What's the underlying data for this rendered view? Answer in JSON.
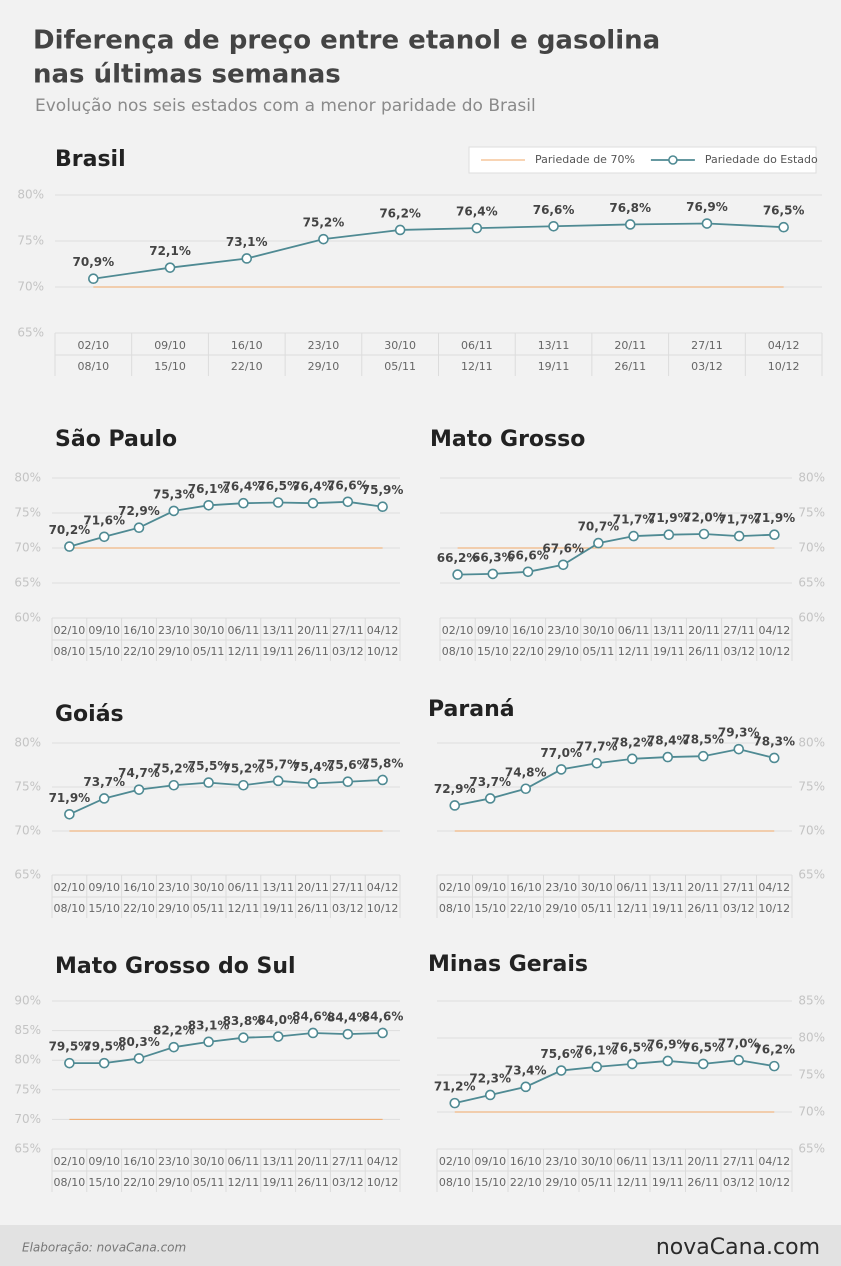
{
  "title": [
    "Diferença de preço entre etanol e gasolina",
    "nas últimas semanas"
  ],
  "subtitle": "Evolução nos seis estados com a menor paridade do Brasil",
  "footer": {
    "credit": "Elaboração: novaCana.com",
    "logo": "novaCana.com"
  },
  "chart_data": [
    {
      "type": "line",
      "title": "Brasil",
      "y_axis_side": "left",
      "grid": true,
      "legend": "top-right",
      "categories": [
        [
          "02/10",
          "08/10"
        ],
        [
          "09/10",
          "15/10"
        ],
        [
          "16/10",
          "22/10"
        ],
        [
          "23/10",
          "29/10"
        ],
        [
          "30/10",
          "05/11"
        ],
        [
          "06/11",
          "12/11"
        ],
        [
          "13/11",
          "19/11"
        ],
        [
          "20/11",
          "26/11"
        ],
        [
          "27/11",
          "03/12"
        ],
        [
          "04/12",
          "10/12"
        ]
      ],
      "ylim": [
        65,
        80
      ],
      "yticks": [
        {
          "value": 65,
          "label": "65%"
        },
        {
          "value": 70,
          "label": "70%"
        },
        {
          "value": 75,
          "label": "75%"
        },
        {
          "value": 80,
          "label": "80%"
        }
      ],
      "series": [
        {
          "name": "Pariedade de 70%",
          "color": "#f0a868",
          "values": [
            70,
            70,
            70,
            70,
            70,
            70,
            70,
            70,
            70,
            70
          ]
        },
        {
          "name": "Pariedade do Estado",
          "color": "#4f8a93",
          "values": [
            70.9,
            72.1,
            73.1,
            75.2,
            76.2,
            76.4,
            76.6,
            76.8,
            76.9,
            76.5
          ],
          "value_labels": [
            "70,9%",
            "72,1%",
            "73,1%",
            "75,2%",
            "76,2%",
            "76,4%",
            "76,6%",
            "76,8%",
            "76,9%",
            "76,5%"
          ]
        }
      ]
    },
    {
      "type": "line",
      "title": "São Paulo",
      "y_axis_side": "left",
      "grid": true,
      "categories": [
        [
          "02/10",
          "08/10"
        ],
        [
          "09/10",
          "15/10"
        ],
        [
          "16/10",
          "22/10"
        ],
        [
          "23/10",
          "29/10"
        ],
        [
          "30/10",
          "05/11"
        ],
        [
          "06/11",
          "12/11"
        ],
        [
          "13/11",
          "19/11"
        ],
        [
          "20/11",
          "26/11"
        ],
        [
          "27/11",
          "03/12"
        ],
        [
          "04/12",
          "10/12"
        ]
      ],
      "ylim": [
        60,
        80
      ],
      "yticks": [
        {
          "value": 60,
          "label": "60%"
        },
        {
          "value": 65,
          "label": "65%"
        },
        {
          "value": 70,
          "label": "70%"
        },
        {
          "value": 75,
          "label": "75%"
        },
        {
          "value": 80,
          "label": "80%"
        }
      ],
      "series": [
        {
          "color": "#f0a868",
          "values": [
            70,
            70,
            70,
            70,
            70,
            70,
            70,
            70,
            70,
            70
          ]
        },
        {
          "color": "#4f8a93",
          "values": [
            70.2,
            71.6,
            72.9,
            75.3,
            76.1,
            76.4,
            76.5,
            76.4,
            76.6,
            75.9
          ],
          "value_labels": [
            "70,2%",
            "71,6%",
            "72,9%",
            "75,3%",
            "76,1%",
            "76,4%",
            "76,5%",
            "76,4%",
            "76,6%",
            "75,9%"
          ]
        }
      ]
    },
    {
      "type": "line",
      "title": "Mato Grosso",
      "y_axis_side": "right",
      "grid": true,
      "categories": [
        [
          "02/10",
          "08/10"
        ],
        [
          "09/10",
          "15/10"
        ],
        [
          "16/10",
          "22/10"
        ],
        [
          "23/10",
          "29/10"
        ],
        [
          "30/10",
          "05/11"
        ],
        [
          "06/11",
          "12/11"
        ],
        [
          "13/11",
          "19/11"
        ],
        [
          "20/11",
          "26/11"
        ],
        [
          "27/11",
          "03/12"
        ],
        [
          "04/12",
          "10/12"
        ]
      ],
      "ylim": [
        60,
        80
      ],
      "yticks": [
        {
          "value": 60,
          "label": "60%"
        },
        {
          "value": 65,
          "label": "65%"
        },
        {
          "value": 70,
          "label": "70%"
        },
        {
          "value": 75,
          "label": "75%"
        },
        {
          "value": 80,
          "label": "80%"
        }
      ],
      "series": [
        {
          "color": "#f0a868",
          "values": [
            70,
            70,
            70,
            70,
            70,
            70,
            70,
            70,
            70,
            70
          ]
        },
        {
          "color": "#4f8a93",
          "values": [
            66.2,
            66.3,
            66.6,
            67.6,
            70.7,
            71.7,
            71.9,
            72.0,
            71.7,
            71.9
          ],
          "value_labels": [
            "66,2%",
            "66,3%",
            "66,6%",
            "67,6%",
            "70,7%",
            "71,7%",
            "71,9%",
            "72,0%",
            "71,7%",
            "71,9%"
          ]
        }
      ]
    },
    {
      "type": "line",
      "title": "Goiás",
      "y_axis_side": "left",
      "grid": true,
      "categories": [
        [
          "02/10",
          "08/10"
        ],
        [
          "09/10",
          "15/10"
        ],
        [
          "16/10",
          "22/10"
        ],
        [
          "23/10",
          "29/10"
        ],
        [
          "30/10",
          "05/11"
        ],
        [
          "06/11",
          "12/11"
        ],
        [
          "13/11",
          "19/11"
        ],
        [
          "20/11",
          "26/11"
        ],
        [
          "27/11",
          "03/12"
        ],
        [
          "04/12",
          "10/12"
        ]
      ],
      "ylim": [
        65,
        80
      ],
      "yticks": [
        {
          "value": 65,
          "label": "65%"
        },
        {
          "value": 70,
          "label": "70%"
        },
        {
          "value": 75,
          "label": "75%"
        },
        {
          "value": 80,
          "label": "80%"
        }
      ],
      "series": [
        {
          "color": "#f0a868",
          "values": [
            70,
            70,
            70,
            70,
            70,
            70,
            70,
            70,
            70,
            70
          ]
        },
        {
          "color": "#4f8a93",
          "values": [
            71.9,
            73.7,
            74.7,
            75.2,
            75.5,
            75.2,
            75.7,
            75.4,
            75.6,
            75.8
          ],
          "value_labels": [
            "71,9%",
            "73,7%",
            "74,7%",
            "75,2%",
            "75,5%",
            "75,2%",
            "75,7%",
            "75,4%",
            "75,6%",
            "75,8%"
          ]
        }
      ]
    },
    {
      "type": "line",
      "title": "Paraná",
      "y_axis_side": "right",
      "grid": true,
      "categories": [
        [
          "02/10",
          "08/10"
        ],
        [
          "09/10",
          "15/10"
        ],
        [
          "16/10",
          "22/10"
        ],
        [
          "23/10",
          "29/10"
        ],
        [
          "30/10",
          "05/11"
        ],
        [
          "06/11",
          "12/11"
        ],
        [
          "13/11",
          "19/11"
        ],
        [
          "20/11",
          "26/11"
        ],
        [
          "27/11",
          "03/12"
        ],
        [
          "04/12",
          "10/12"
        ]
      ],
      "ylim": [
        65,
        80
      ],
      "yticks": [
        {
          "value": 65,
          "label": "65%"
        },
        {
          "value": 70,
          "label": "70%"
        },
        {
          "value": 75,
          "label": "75%"
        },
        {
          "value": 80,
          "label": "80%"
        }
      ],
      "series": [
        {
          "color": "#f0a868",
          "values": [
            70,
            70,
            70,
            70,
            70,
            70,
            70,
            70,
            70,
            70
          ]
        },
        {
          "color": "#4f8a93",
          "values": [
            72.9,
            73.7,
            74.8,
            77.0,
            77.7,
            78.2,
            78.4,
            78.5,
            79.3,
            78.3
          ],
          "value_labels": [
            "72,9%",
            "73,7%",
            "74,8%",
            "77,0%",
            "77,7%",
            "78,2%",
            "78,4%",
            "78,5%",
            "79,3%",
            "78,3%"
          ]
        }
      ]
    },
    {
      "type": "line",
      "title": "Mato Grosso do Sul",
      "y_axis_side": "left",
      "grid": true,
      "categories": [
        [
          "02/10",
          "08/10"
        ],
        [
          "09/10",
          "15/10"
        ],
        [
          "16/10",
          "22/10"
        ],
        [
          "23/10",
          "29/10"
        ],
        [
          "30/10",
          "05/11"
        ],
        [
          "06/11",
          "12/11"
        ],
        [
          "13/11",
          "19/11"
        ],
        [
          "20/11",
          "26/11"
        ],
        [
          "27/11",
          "03/12"
        ],
        [
          "04/12",
          "10/12"
        ]
      ],
      "ylim": [
        65,
        90
      ],
      "yticks": [
        {
          "value": 65,
          "label": "65%"
        },
        {
          "value": 70,
          "label": "70%"
        },
        {
          "value": 75,
          "label": "75%"
        },
        {
          "value": 80,
          "label": "80%"
        },
        {
          "value": 85,
          "label": "85%"
        },
        {
          "value": 90,
          "label": "90%"
        }
      ],
      "series": [
        {
          "color": "#f0a868",
          "values": [
            70,
            70,
            70,
            70,
            70,
            70,
            70,
            70,
            70,
            70
          ]
        },
        {
          "color": "#4f8a93",
          "values": [
            79.5,
            79.5,
            80.3,
            82.2,
            83.1,
            83.8,
            84.0,
            84.6,
            84.4,
            84.6
          ],
          "value_labels": [
            "79,5%",
            "79,5%",
            "80,3%",
            "82,2%",
            "83,1%",
            "83,8%",
            "84,0%",
            "84,6%",
            "84,4%",
            "84,6%"
          ]
        }
      ]
    },
    {
      "type": "line",
      "title": "Minas Gerais",
      "y_axis_side": "right",
      "grid": true,
      "categories": [
        [
          "02/10",
          "08/10"
        ],
        [
          "09/10",
          "15/10"
        ],
        [
          "16/10",
          "22/10"
        ],
        [
          "23/10",
          "29/10"
        ],
        [
          "30/10",
          "05/11"
        ],
        [
          "06/11",
          "12/11"
        ],
        [
          "13/11",
          "19/11"
        ],
        [
          "20/11",
          "26/11"
        ],
        [
          "27/11",
          "03/12"
        ],
        [
          "04/12",
          "10/12"
        ]
      ],
      "ylim": [
        65,
        85
      ],
      "yticks": [
        {
          "value": 65,
          "label": "65%"
        },
        {
          "value": 70,
          "label": "70%"
        },
        {
          "value": 75,
          "label": "75%"
        },
        {
          "value": 80,
          "label": "80%"
        },
        {
          "value": 85,
          "label": "85%"
        }
      ],
      "series": [
        {
          "color": "#f0a868",
          "values": [
            70,
            70,
            70,
            70,
            70,
            70,
            70,
            70,
            70,
            70
          ]
        },
        {
          "color": "#4f8a93",
          "values": [
            71.2,
            72.3,
            73.4,
            75.6,
            76.1,
            76.5,
            76.9,
            76.5,
            77.0,
            76.2
          ],
          "value_labels": [
            "71,2%",
            "72,3%",
            "73,4%",
            "75,6%",
            "76,1%",
            "76,5%",
            "76,9%",
            "76,5%",
            "77,0%",
            "76,2%"
          ]
        }
      ]
    }
  ]
}
